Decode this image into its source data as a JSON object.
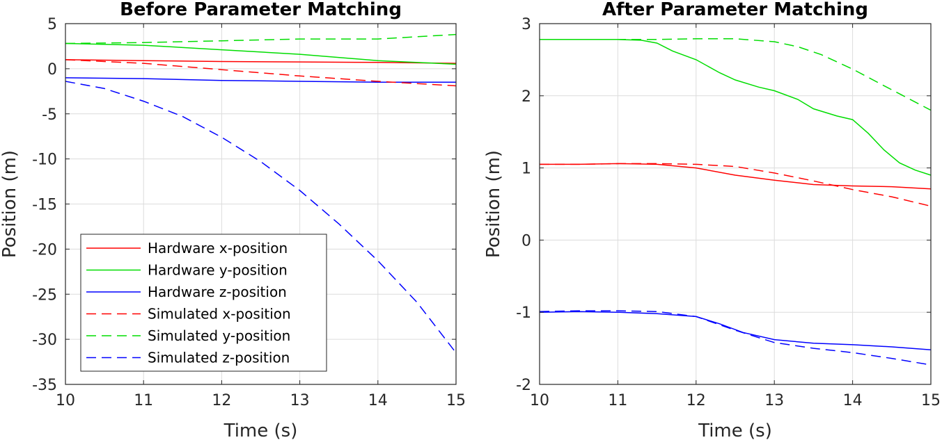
{
  "chart_data": [
    {
      "type": "line",
      "title": "Before Parameter Matching",
      "xlabel": "Time (s)",
      "ylabel": "Position (m)",
      "xlim": [
        10,
        15
      ],
      "ylim": [
        -35,
        5
      ],
      "xticks": [
        10,
        11,
        12,
        13,
        14,
        15
      ],
      "yticks": [
        5,
        0,
        -5,
        -10,
        -15,
        -20,
        -25,
        -30,
        -35
      ],
      "grid": true,
      "legend": "lower-left",
      "series": [
        {
          "name": "Hardware x-position",
          "color": "#ff0000",
          "dash": "solid",
          "x": [
            10,
            11,
            12,
            13,
            14,
            15
          ],
          "y": [
            1.0,
            0.9,
            0.8,
            0.75,
            0.7,
            0.6
          ]
        },
        {
          "name": "Hardware y-position",
          "color": "#00dd00",
          "dash": "solid",
          "x": [
            10,
            11,
            12,
            13,
            14,
            15
          ],
          "y": [
            2.8,
            2.6,
            2.1,
            1.6,
            0.9,
            0.5
          ]
        },
        {
          "name": "Hardware z-position",
          "color": "#0000ff",
          "dash": "solid",
          "x": [
            10,
            11,
            12,
            13,
            14,
            15
          ],
          "y": [
            -1.0,
            -1.1,
            -1.3,
            -1.4,
            -1.5,
            -1.5
          ]
        },
        {
          "name": "Simulated x-position",
          "color": "#ff0000",
          "dash": "dashed",
          "x": [
            10,
            11,
            12,
            13,
            14,
            15
          ],
          "y": [
            1.0,
            0.6,
            -0.1,
            -0.8,
            -1.4,
            -1.9
          ]
        },
        {
          "name": "Simulated y-position",
          "color": "#00dd00",
          "dash": "dashed",
          "x": [
            10,
            11,
            12,
            13,
            14,
            15
          ],
          "y": [
            2.8,
            2.9,
            3.1,
            3.3,
            3.3,
            3.8
          ]
        },
        {
          "name": "Simulated z-position",
          "color": "#0000ff",
          "dash": "dashed",
          "x": [
            10,
            10.5,
            11,
            11.5,
            12,
            12.5,
            13,
            13.5,
            14,
            14.5,
            15
          ],
          "y": [
            -1.4,
            -2.2,
            -3.6,
            -5.3,
            -7.6,
            -10.3,
            -13.5,
            -17.2,
            -21.3,
            -25.9,
            -31.5
          ]
        }
      ]
    },
    {
      "type": "line",
      "title": "After Parameter Matching",
      "xlabel": "Time (s)",
      "ylabel": "Position (m)",
      "xlim": [
        10,
        15
      ],
      "ylim": [
        -2,
        3
      ],
      "xticks": [
        10,
        11,
        12,
        13,
        14,
        15
      ],
      "yticks": [
        3,
        2,
        1,
        0,
        -1,
        -2
      ],
      "grid": true,
      "legend": "none",
      "series": [
        {
          "name": "Hardware x-position",
          "color": "#ff0000",
          "dash": "solid",
          "x": [
            10,
            10.5,
            11,
            11.5,
            12,
            12.5,
            13,
            13.5,
            14,
            14.5,
            15
          ],
          "y": [
            1.05,
            1.05,
            1.06,
            1.05,
            1.0,
            0.9,
            0.83,
            0.77,
            0.75,
            0.74,
            0.71
          ]
        },
        {
          "name": "Hardware y-position",
          "color": "#00dd00",
          "dash": "solid",
          "x": [
            10,
            10.5,
            11,
            11.3,
            11.5,
            11.7,
            12,
            12.3,
            12.5,
            12.8,
            13,
            13.3,
            13.5,
            13.8,
            14,
            14.2,
            14.4,
            14.6,
            14.8,
            15
          ],
          "y": [
            2.78,
            2.78,
            2.78,
            2.77,
            2.73,
            2.62,
            2.5,
            2.32,
            2.22,
            2.12,
            2.07,
            1.95,
            1.82,
            1.72,
            1.67,
            1.48,
            1.25,
            1.07,
            0.97,
            0.9
          ]
        },
        {
          "name": "Hardware z-position",
          "color": "#0000ff",
          "dash": "solid",
          "x": [
            10,
            10.5,
            11,
            11.5,
            12,
            12.3,
            12.6,
            13,
            13.5,
            14,
            14.5,
            15
          ],
          "y": [
            -1.0,
            -0.99,
            -1.0,
            -1.02,
            -1.06,
            -1.16,
            -1.28,
            -1.38,
            -1.43,
            -1.45,
            -1.48,
            -1.52
          ]
        },
        {
          "name": "Simulated x-position",
          "color": "#ff0000",
          "dash": "dashed",
          "x": [
            10,
            10.5,
            11,
            11.5,
            12,
            12.5,
            13,
            13.5,
            14,
            14.5,
            15
          ],
          "y": [
            1.05,
            1.05,
            1.06,
            1.06,
            1.05,
            1.02,
            0.93,
            0.82,
            0.7,
            0.6,
            0.47
          ]
        },
        {
          "name": "Simulated y-position",
          "color": "#00dd00",
          "dash": "dashed",
          "x": [
            10,
            10.5,
            11,
            11.5,
            12,
            12.5,
            13,
            13.3,
            13.6,
            14,
            14.4,
            14.7,
            15
          ],
          "y": [
            2.78,
            2.78,
            2.78,
            2.78,
            2.79,
            2.79,
            2.75,
            2.68,
            2.57,
            2.37,
            2.14,
            1.97,
            1.8
          ]
        },
        {
          "name": "Simulated z-position",
          "color": "#0000ff",
          "dash": "dashed",
          "x": [
            10,
            10.5,
            11,
            11.5,
            12,
            12.5,
            13,
            13.5,
            14,
            14.5,
            15
          ],
          "y": [
            -0.99,
            -0.98,
            -0.98,
            -0.99,
            -1.06,
            -1.25,
            -1.42,
            -1.5,
            -1.56,
            -1.64,
            -1.73
          ]
        }
      ]
    }
  ]
}
